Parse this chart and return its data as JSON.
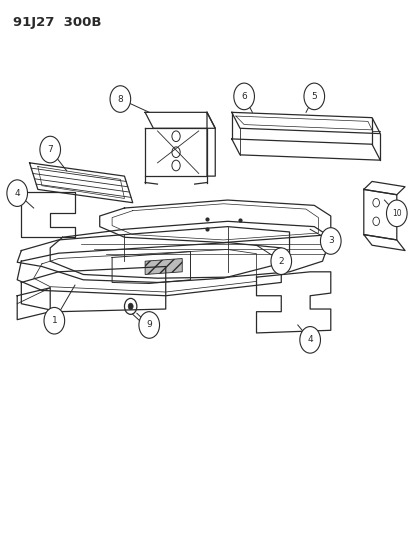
{
  "title": "91J27  300B",
  "background_color": "#ffffff",
  "line_color": "#2a2a2a",
  "fig_width": 4.14,
  "fig_height": 5.33,
  "dpi": 100
}
